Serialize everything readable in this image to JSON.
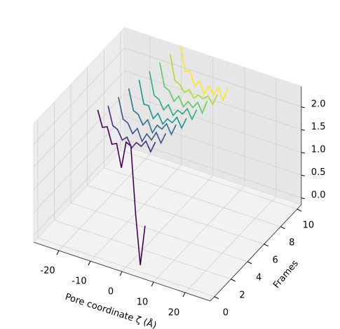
{
  "chart_data": {
    "type": "line3d",
    "xlabel": "Pore coordinate ζ (Å)",
    "ylabel": "Frames",
    "xlim": [
      -28,
      28
    ],
    "ylim": [
      -0.5,
      10.5
    ],
    "zlim": [
      -0.15,
      2.45
    ],
    "xticks": [
      -20,
      -10,
      0,
      10,
      20
    ],
    "yticks": [
      0,
      2,
      4,
      6,
      8,
      10
    ],
    "zticks": [
      {
        "value": 0,
        "label": "0.0"
      },
      {
        "value": 0.5,
        "label": "0.5"
      },
      {
        "value": 1,
        "label": "1.0"
      },
      {
        "value": 1.5,
        "label": "1.5"
      },
      {
        "value": 2,
        "label": "2.0"
      }
    ],
    "grid": true,
    "x": [
      -9,
      -7.5,
      -6,
      -4.5,
      -3,
      -1.5,
      0,
      1.5,
      3,
      4.5,
      6
    ],
    "series": [
      {
        "frame": 0,
        "color": "#440154",
        "values": [
          3.1,
          2.75,
          2.8,
          2.45,
          2.5,
          2.0,
          2.6,
          2.55,
          1.1,
          0.0,
          0.9
        ]
      },
      {
        "frame": 1.25,
        "color": "#472d7b",
        "values": [
          2.95,
          2.55,
          2.5,
          2.3,
          2.4,
          2.2,
          2.35,
          2.3,
          2.45,
          2.25,
          2.5
        ]
      },
      {
        "frame": 2.5,
        "color": "#3b528b",
        "values": [
          2.9,
          2.45,
          2.4,
          2.2,
          2.35,
          2.1,
          2.3,
          2.2,
          2.4,
          2.2,
          2.45
        ]
      },
      {
        "frame": 3.75,
        "color": "#2c728e",
        "values": [
          2.85,
          2.4,
          2.35,
          2.15,
          2.3,
          2.05,
          2.25,
          2.2,
          2.35,
          2.15,
          2.4
        ]
      },
      {
        "frame": 5,
        "color": "#21918c",
        "values": [
          2.8,
          2.3,
          2.3,
          2.05,
          2.2,
          2.0,
          2.15,
          2.1,
          2.25,
          2.05,
          2.3
        ]
      },
      {
        "frame": 6.25,
        "color": "#28ae80",
        "values": [
          2.75,
          2.25,
          2.2,
          2.0,
          2.15,
          1.95,
          2.1,
          2.05,
          2.2,
          2.0,
          2.25
        ]
      },
      {
        "frame": 7.5,
        "color": "#5ec962",
        "values": [
          2.7,
          2.2,
          2.15,
          1.95,
          2.1,
          1.9,
          2.05,
          1.95,
          2.1,
          1.9,
          2.2
        ]
      },
      {
        "frame": 8.75,
        "color": "#addc30",
        "values": [
          2.65,
          2.1,
          2.05,
          1.9,
          2.0,
          1.85,
          1.95,
          1.9,
          2.0,
          1.85,
          2.1
        ]
      },
      {
        "frame": 10,
        "color": "#fde725",
        "values": [
          2.6,
          2.05,
          2.1,
          1.8,
          1.95,
          1.7,
          1.9,
          1.75,
          1.95,
          1.7,
          2.0
        ]
      }
    ]
  }
}
